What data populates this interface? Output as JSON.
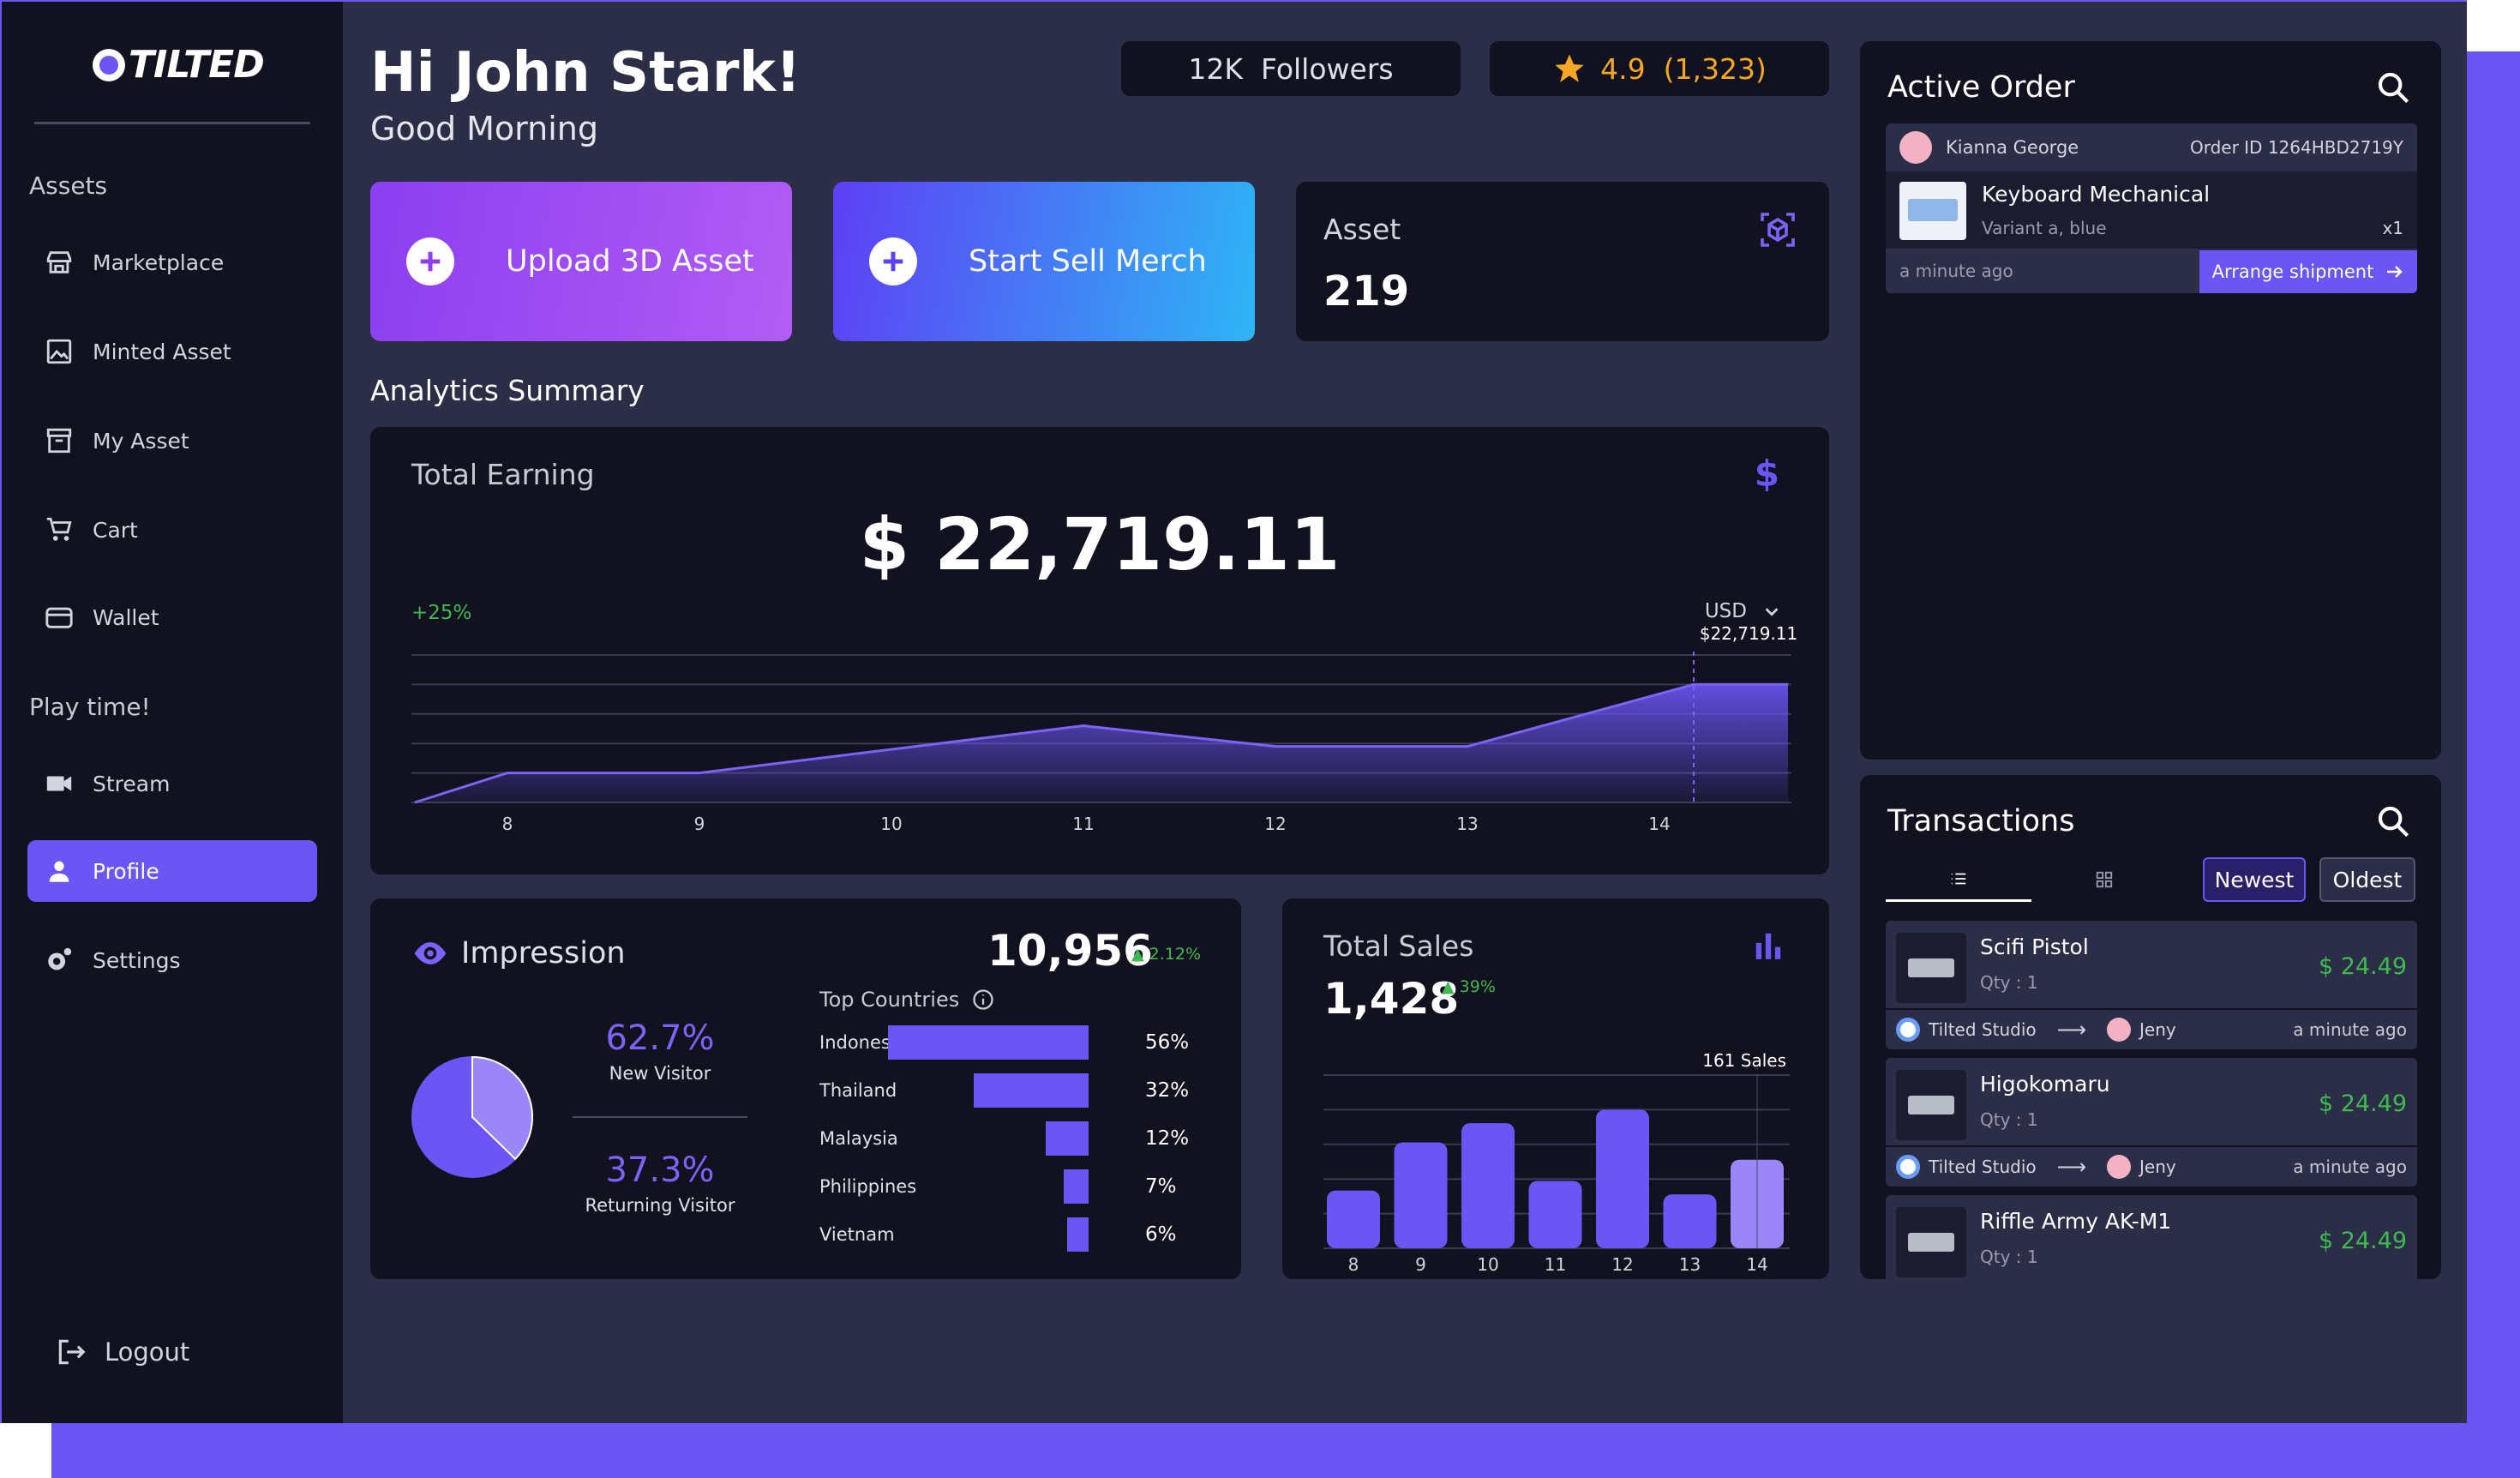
{
  "brand": {
    "logo_text": "TILTED"
  },
  "sidebar": {
    "section_assets": "Assets",
    "section_play": "Play time!",
    "items": [
      {
        "label": "Marketplace",
        "icon": "store-icon"
      },
      {
        "label": "Minted Asset",
        "icon": "image-icon"
      },
      {
        "label": "My Asset",
        "icon": "archive-icon"
      },
      {
        "label": "Cart",
        "icon": "cart-icon"
      },
      {
        "label": "Wallet",
        "icon": "wallet-icon"
      },
      {
        "label": "Stream",
        "icon": "video-icon"
      },
      {
        "label": "Profile",
        "icon": "person-icon",
        "active": true
      },
      {
        "label": "Settings",
        "icon": "gear-icon"
      }
    ],
    "logout": "Logout"
  },
  "header": {
    "greeting": "Hi John Stark!",
    "subtitle": "Good Morning",
    "followers": "12K  Followers",
    "rating": "4.9  (1,323)"
  },
  "actions": {
    "upload": "Upload 3D Asset",
    "merch": "Start Sell Merch"
  },
  "asset_card": {
    "label": "Asset",
    "value": "219"
  },
  "analytics": {
    "title": "Analytics Summary"
  },
  "earning": {
    "label": "Total Earning",
    "amount": "$ 22,719.11",
    "change": "+25%",
    "currency": "USD",
    "marker_label": "$22,719.11",
    "colors": {
      "fill": "#6b55f5",
      "line": "#7c63f5"
    }
  },
  "impression": {
    "title": "Impression",
    "total": "10,956",
    "change": "▲ 2.12%",
    "new_pct": "62.7%",
    "new_label": "New Visitor",
    "ret_pct": "37.3%",
    "ret_label": "Returning Visitor",
    "top_countries": "Top Countries",
    "countries": [
      {
        "name": "Indonesia",
        "pct": "56%",
        "value": 56
      },
      {
        "name": "Thailand",
        "pct": "32%",
        "value": 32
      },
      {
        "name": "Malaysia",
        "pct": "12%",
        "value": 12
      },
      {
        "name": "Philippines",
        "pct": "7%",
        "value": 7
      },
      {
        "name": "Vietnam",
        "pct": "6%",
        "value": 6
      }
    ]
  },
  "sales": {
    "label": "Total Sales",
    "value": "1,428",
    "change": "▲ 39%",
    "marker_label": "161 Sales"
  },
  "chart_data": [
    {
      "type": "area",
      "x": [
        "8",
        "9",
        "10",
        "11",
        "12",
        "13",
        "14"
      ],
      "series": [
        {
          "values": [
            1.0,
            1.0,
            1.8,
            2.6,
            1.9,
            1.9,
            4.0
          ]
        }
      ],
      "annotations": [
        "$22,719.11"
      ],
      "ylim": [
        0,
        5
      ],
      "grid": true
    },
    {
      "type": "bar",
      "categories": [
        "8",
        "9",
        "10",
        "11",
        "12",
        "13",
        "14"
      ],
      "values": [
        30,
        55,
        65,
        35,
        72,
        28,
        46
      ],
      "annotations": [
        "161 Sales"
      ],
      "ylim": [
        0,
        90
      ],
      "grid": true
    }
  ],
  "order": {
    "title": "Active Order",
    "customer": "Kianna George",
    "order_id": "Order ID 1264HBD2719Y",
    "item_name": "Keyboard Mechanical",
    "variant": "Variant a, blue",
    "qty": "x1",
    "time": "a minute ago",
    "ship_button": "Arrange shipment"
  },
  "transactions": {
    "title": "Transactions",
    "newest": "Newest",
    "oldest": "Oldest",
    "rows": [
      {
        "name": "Scifi Pistol",
        "qty": "Qty : 1",
        "price": "$ 24.49",
        "from": "Tilted Studio",
        "to": "Jeny",
        "time": "a minute ago"
      },
      {
        "name": "Higokomaru",
        "qty": "Qty : 1",
        "price": "$ 24.49",
        "from": "Tilted Studio",
        "to": "Jeny",
        "time": "a minute ago"
      },
      {
        "name": "Riffle Army AK-M1",
        "qty": "Qty : 1",
        "price": "$ 24.49",
        "from": "",
        "to": "",
        "time": ""
      }
    ]
  }
}
